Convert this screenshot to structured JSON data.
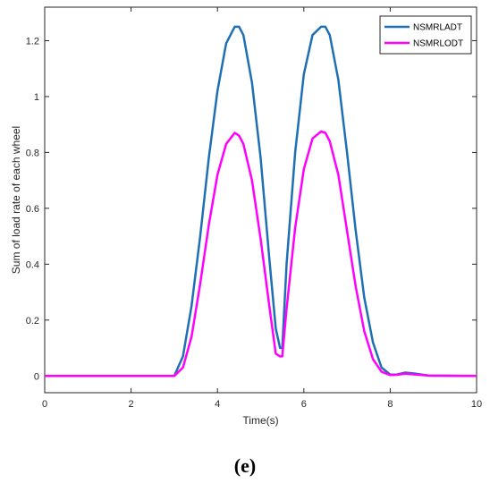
{
  "chart_data": {
    "type": "line",
    "xlabel": "Time(s)",
    "ylabel": "Sum of load rate of each wheel",
    "xlim": [
      0,
      10
    ],
    "ylim": [
      -0.06,
      1.32
    ],
    "xticks": [
      0,
      2,
      4,
      6,
      8,
      10
    ],
    "yticks": [
      0,
      0.2,
      0.4,
      0.6,
      0.8,
      1,
      1.2
    ],
    "xtick_labels": [
      "0",
      "2",
      "4",
      "6",
      "8",
      "10"
    ],
    "ytick_labels": [
      "0",
      "0.2",
      "0.4",
      "0.6",
      "0.8",
      "1",
      "1.2"
    ],
    "grid": false,
    "legend_position": "top-right",
    "series": [
      {
        "name": "NSMRLADT",
        "color": "#1f6fb4",
        "x": [
          0,
          3.0,
          3.2,
          3.4,
          3.6,
          3.8,
          4.0,
          4.2,
          4.4,
          4.5,
          4.6,
          4.8,
          5.0,
          5.2,
          5.35,
          5.45,
          5.5,
          5.6,
          5.8,
          6.0,
          6.2,
          6.4,
          6.5,
          6.6,
          6.8,
          7.0,
          7.2,
          7.4,
          7.6,
          7.8,
          8.0,
          8.15,
          8.35,
          8.6,
          8.9,
          10
        ],
        "y": [
          0,
          0,
          0.07,
          0.25,
          0.5,
          0.78,
          1.02,
          1.19,
          1.25,
          1.25,
          1.22,
          1.05,
          0.78,
          0.42,
          0.17,
          0.1,
          0.1,
          0.4,
          0.8,
          1.08,
          1.22,
          1.25,
          1.25,
          1.22,
          1.06,
          0.8,
          0.52,
          0.28,
          0.12,
          0.03,
          0.005,
          0.005,
          0.012,
          0.008,
          0.001,
          0
        ]
      },
      {
        "name": "NSMRLODT",
        "color": "#ff00ff",
        "x": [
          0,
          3.0,
          3.2,
          3.4,
          3.6,
          3.8,
          4.0,
          4.2,
          4.4,
          4.5,
          4.6,
          4.8,
          5.0,
          5.2,
          5.35,
          5.45,
          5.5,
          5.6,
          5.8,
          6.0,
          6.2,
          6.4,
          6.5,
          6.6,
          6.8,
          7.0,
          7.2,
          7.4,
          7.6,
          7.8,
          8.0,
          8.15,
          8.35,
          8.6,
          8.9,
          10
        ],
        "y": [
          0,
          0,
          0.03,
          0.14,
          0.33,
          0.54,
          0.72,
          0.83,
          0.87,
          0.86,
          0.83,
          0.7,
          0.49,
          0.25,
          0.08,
          0.07,
          0.07,
          0.24,
          0.53,
          0.74,
          0.85,
          0.875,
          0.87,
          0.84,
          0.72,
          0.52,
          0.32,
          0.16,
          0.06,
          0.015,
          0.003,
          0.004,
          0.008,
          0.005,
          0.001,
          0
        ]
      }
    ]
  },
  "panel_label": "(e)"
}
